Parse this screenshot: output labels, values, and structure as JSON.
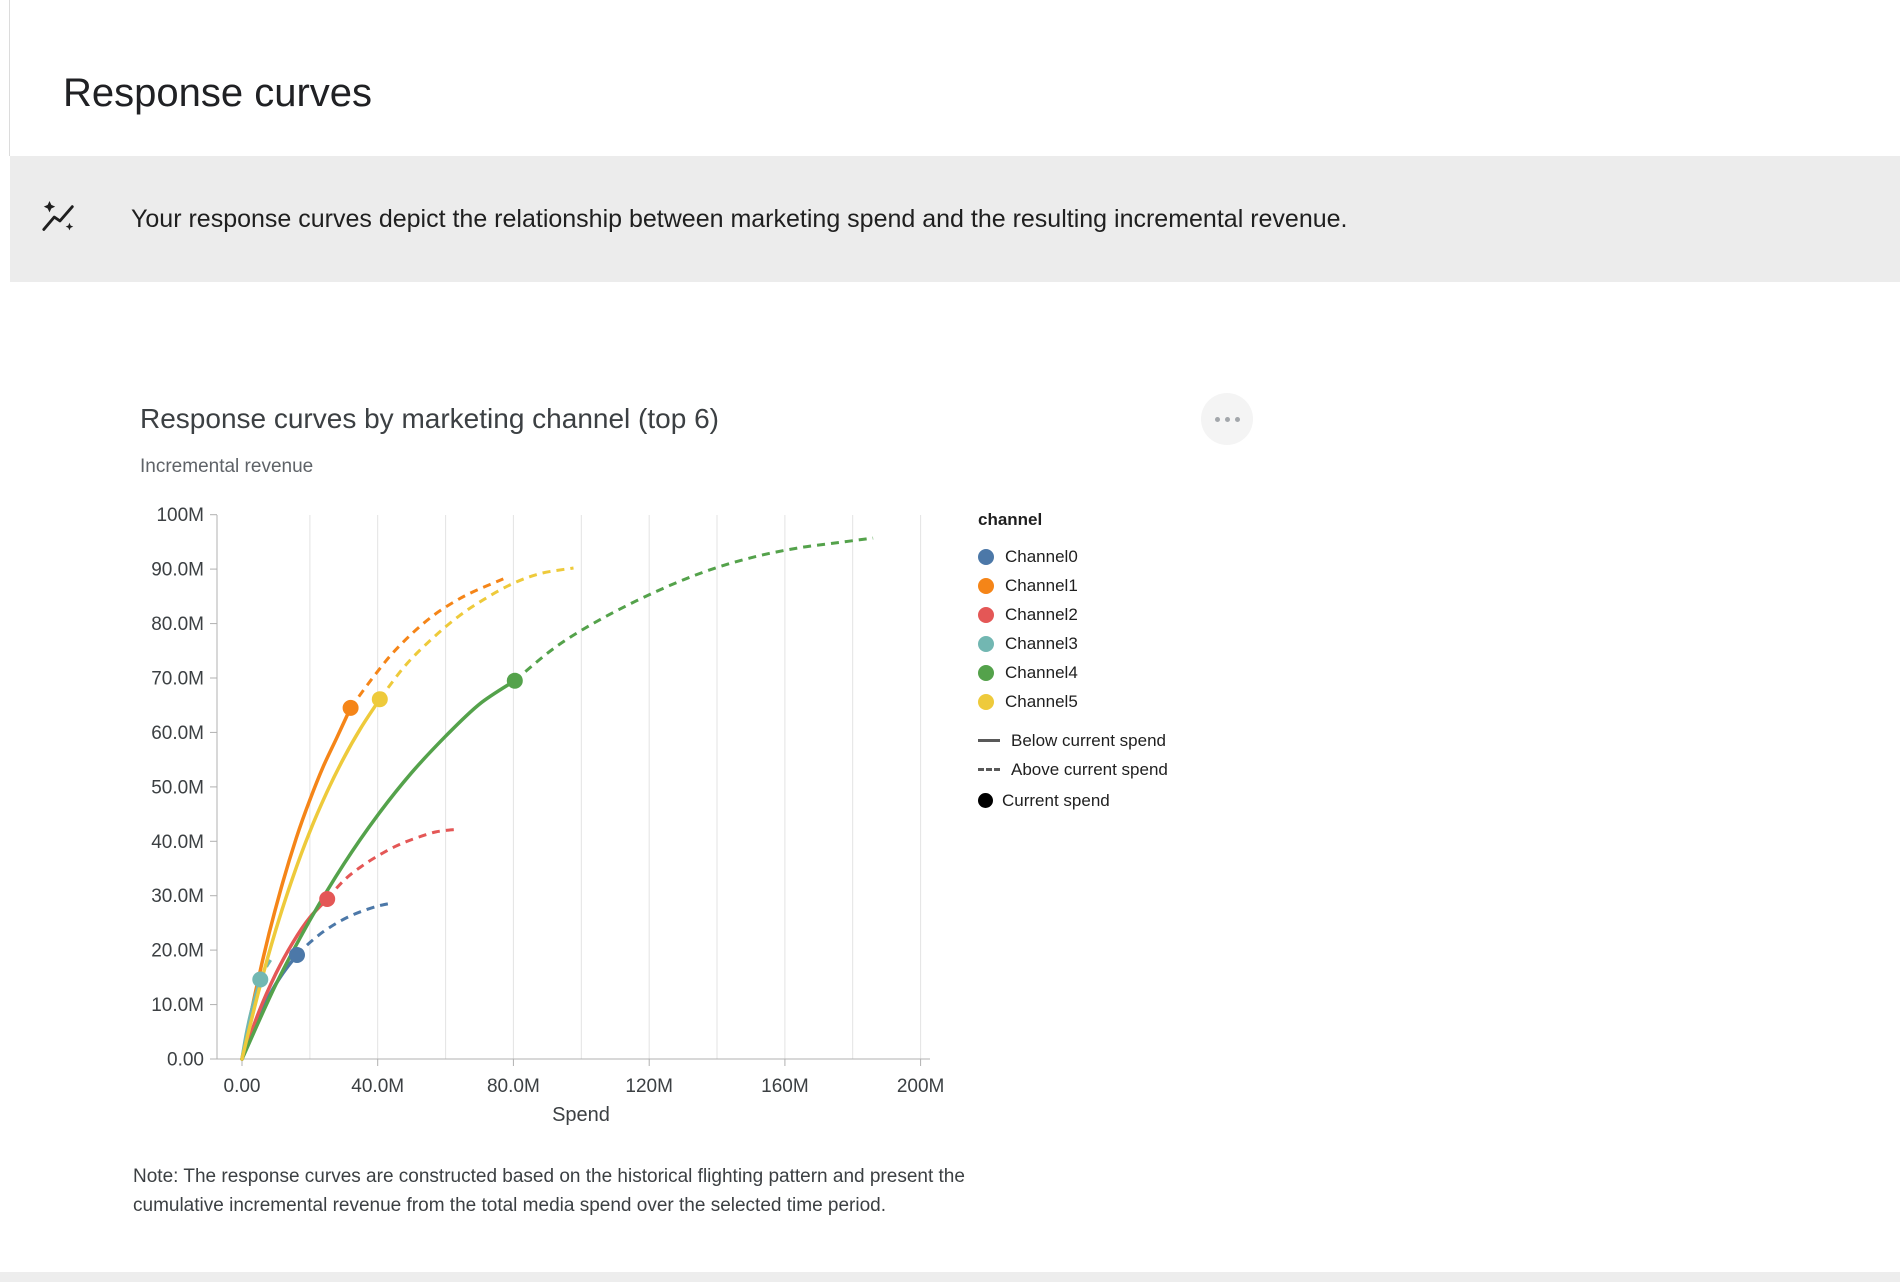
{
  "page": {
    "title": "Response curves"
  },
  "banner": {
    "icon": "insights-icon",
    "text": "Your response curves depict the relationship between marketing spend and the resulting incremental revenue."
  },
  "card": {
    "menu_icon": "more-options-icon",
    "note": "Note: The response curves are constructed based on the historical flighting pattern and present the cumulative incremental revenue from the total media spend over the selected time period."
  },
  "chart_data": {
    "type": "line",
    "title": "Response curves by marketing channel (top 6)",
    "xlabel": "Spend",
    "ylabel": "Incremental revenue",
    "units": "millions",
    "xlim": [
      0,
      200
    ],
    "ylim": [
      0,
      100
    ],
    "grid": "vertical-only",
    "x_ticks": [
      {
        "v": 0,
        "label": "0.00"
      },
      {
        "v": 40,
        "label": "40.0M"
      },
      {
        "v": 80,
        "label": "80.0M"
      },
      {
        "v": 120,
        "label": "120M"
      },
      {
        "v": 160,
        "label": "160M"
      },
      {
        "v": 200,
        "label": "200M"
      }
    ],
    "y_ticks": [
      {
        "v": 0,
        "label": "0.00"
      },
      {
        "v": 10,
        "label": "10.0M"
      },
      {
        "v": 20,
        "label": "20.0M"
      },
      {
        "v": 30,
        "label": "30.0M"
      },
      {
        "v": 40,
        "label": "40.0M"
      },
      {
        "v": 50,
        "label": "50.0M"
      },
      {
        "v": 60,
        "label": "60.0M"
      },
      {
        "v": 70,
        "label": "70.0M"
      },
      {
        "v": 80,
        "label": "80.0M"
      },
      {
        "v": 90,
        "label": "90.0M"
      },
      {
        "v": 100,
        "label": "100M"
      }
    ],
    "grid_x_values": [
      20,
      40,
      60,
      80,
      100,
      120,
      140,
      160,
      180,
      200
    ],
    "legend": {
      "title": "channel",
      "position": "right",
      "below_label": "Below current spend",
      "above_label": "Above current spend",
      "current_label": "Current spend"
    },
    "series": [
      {
        "name": "Channel0",
        "color": "#4c78a8",
        "current_spend": {
          "x": 16.2,
          "y": 19.1
        },
        "below_current": [
          [
            0,
            0
          ],
          [
            2,
            3.4
          ],
          [
            4,
            6.5
          ],
          [
            6,
            9.2
          ],
          [
            8,
            11.6
          ],
          [
            10,
            13.8
          ],
          [
            12,
            15.7
          ],
          [
            14,
            17.4
          ],
          [
            16.2,
            19.1
          ]
        ],
        "above_current": [
          [
            16.2,
            19.1
          ],
          [
            20,
            21.4
          ],
          [
            24,
            23.4
          ],
          [
            28,
            25.0
          ],
          [
            32,
            26.3
          ],
          [
            36,
            27.3
          ],
          [
            40,
            28.1
          ],
          [
            43,
            28.5
          ]
        ]
      },
      {
        "name": "Channel1",
        "color": "#f58518",
        "current_spend": {
          "x": 32,
          "y": 64.5
        },
        "below_current": [
          [
            0,
            0
          ],
          [
            4,
            12.4
          ],
          [
            8,
            23.1
          ],
          [
            12,
            32.4
          ],
          [
            16,
            40.6
          ],
          [
            20,
            47.6
          ],
          [
            24,
            53.8
          ],
          [
            28,
            59.1
          ],
          [
            32,
            64.5
          ]
        ],
        "above_current": [
          [
            32,
            64.5
          ],
          [
            38,
            69.6
          ],
          [
            44,
            74.3
          ],
          [
            50,
            78.1
          ],
          [
            56,
            81.3
          ],
          [
            62,
            83.8
          ],
          [
            68,
            85.8
          ],
          [
            77,
            88.2
          ]
        ]
      },
      {
        "name": "Channel2",
        "color": "#e45756",
        "current_spend": {
          "x": 25.1,
          "y": 29.4
        },
        "below_current": [
          [
            0,
            0
          ],
          [
            5,
            8.7
          ],
          [
            10,
            15.7
          ],
          [
            15,
            21.4
          ],
          [
            20,
            26.0
          ],
          [
            25.1,
            29.4
          ]
        ],
        "above_current": [
          [
            25.1,
            29.4
          ],
          [
            30,
            32.8
          ],
          [
            35,
            35.3
          ],
          [
            40,
            37.3
          ],
          [
            45,
            39.0
          ],
          [
            50,
            40.3
          ],
          [
            57,
            41.7
          ],
          [
            63.5,
            42.2
          ]
        ]
      },
      {
        "name": "Channel3",
        "color": "#72b7b2",
        "current_spend": {
          "x": 5.4,
          "y": 14.6
        },
        "below_current": [
          [
            0,
            0
          ],
          [
            1,
            3.7
          ],
          [
            2,
            6.8
          ],
          [
            3,
            9.4
          ],
          [
            4,
            11.7
          ],
          [
            5.4,
            14.6
          ]
        ],
        "above_current": [
          [
            5.4,
            14.6
          ],
          [
            7,
            16.7
          ],
          [
            8.5,
            18.2
          ]
        ]
      },
      {
        "name": "Channel4",
        "color": "#54a24b",
        "current_spend": {
          "x": 80.4,
          "y": 69.5
        },
        "below_current": [
          [
            0,
            0
          ],
          [
            10,
            13.7
          ],
          [
            20,
            25.5
          ],
          [
            30,
            35.8
          ],
          [
            40,
            44.8
          ],
          [
            50,
            52.6
          ],
          [
            60,
            59.3
          ],
          [
            70,
            65.2
          ],
          [
            80.4,
            69.5
          ]
        ],
        "above_current": [
          [
            80.4,
            69.5
          ],
          [
            92,
            75.5
          ],
          [
            104,
            80.2
          ],
          [
            116,
            84.1
          ],
          [
            128,
            87.5
          ],
          [
            140,
            90.3
          ],
          [
            152,
            92.4
          ],
          [
            164,
            93.9
          ],
          [
            176,
            94.9
          ],
          [
            186,
            95.7
          ]
        ]
      },
      {
        "name": "Channel5",
        "color": "#eeca3b",
        "current_spend": {
          "x": 40.6,
          "y": 66.1
        },
        "below_current": [
          [
            0,
            0
          ],
          [
            5,
            12.7
          ],
          [
            10,
            23.8
          ],
          [
            15,
            33.4
          ],
          [
            20,
            41.8
          ],
          [
            25,
            49.0
          ],
          [
            30,
            55.3
          ],
          [
            35,
            60.8
          ],
          [
            40.6,
            66.1
          ]
        ],
        "above_current": [
          [
            40.6,
            66.1
          ],
          [
            48,
            72.2
          ],
          [
            56,
            77.2
          ],
          [
            64,
            81.4
          ],
          [
            72,
            84.7
          ],
          [
            80,
            87.4
          ],
          [
            88,
            89.2
          ],
          [
            97.7,
            90.2
          ]
        ]
      }
    ]
  }
}
